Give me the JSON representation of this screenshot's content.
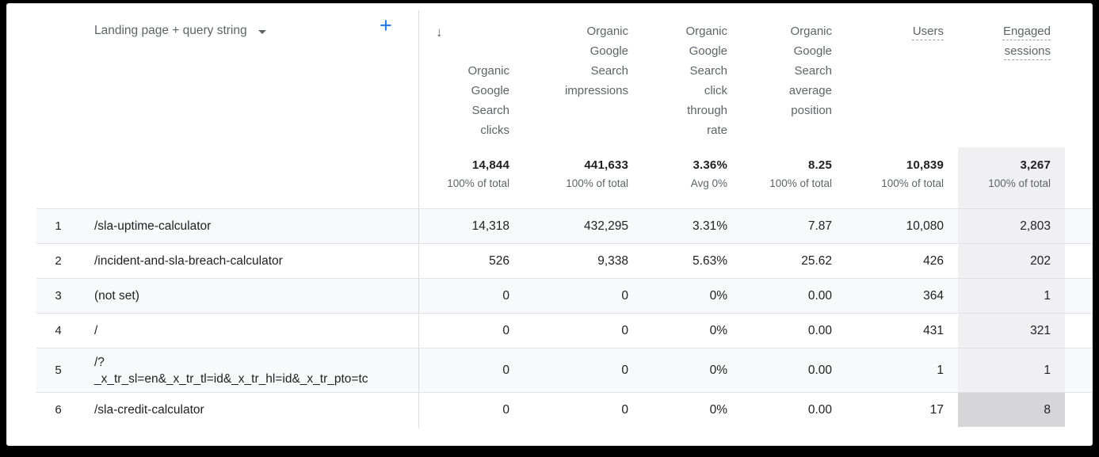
{
  "header": {
    "dimension_label": "Landing page + query string",
    "add_metric_label": "+",
    "sort_arrow": "↓",
    "columns": [
      {
        "label": "Organic\nGoogle\nSearch\nclicks"
      },
      {
        "label": "Organic\nGoogle\nSearch\nimpressions"
      },
      {
        "label": "Organic\nGoogle\nSearch\nclick\nthrough\nrate"
      },
      {
        "label": "Organic\nGoogle\nSearch\naverage\nposition"
      },
      {
        "label": "Users"
      },
      {
        "label": "Engaged\nsessions"
      }
    ]
  },
  "totals": [
    {
      "value": "14,844",
      "sub": "100% of total"
    },
    {
      "value": "441,633",
      "sub": "100% of total"
    },
    {
      "value": "3.36%",
      "sub": "Avg 0%"
    },
    {
      "value": "8.25",
      "sub": "100% of total"
    },
    {
      "value": "10,839",
      "sub": "100% of total"
    },
    {
      "value": "3,267",
      "sub": "100% of total"
    }
  ],
  "rows": [
    {
      "index": "1",
      "page": "/sla-uptime-calculator",
      "values": [
        "14,318",
        "432,295",
        "3.31%",
        "7.87",
        "10,080",
        "2,803"
      ]
    },
    {
      "index": "2",
      "page": "/incident-and-sla-breach-calculator",
      "values": [
        "526",
        "9,338",
        "5.63%",
        "25.62",
        "426",
        "202"
      ]
    },
    {
      "index": "3",
      "page": "(not set)",
      "values": [
        "0",
        "0",
        "0%",
        "0.00",
        "364",
        "1"
      ]
    },
    {
      "index": "4",
      "page": "/",
      "values": [
        "0",
        "0",
        "0%",
        "0.00",
        "431",
        "321"
      ]
    },
    {
      "index": "5",
      "page": "/?\n_x_tr_sl=en&_x_tr_tl=id&_x_tr_hl=id&_x_tr_pto=tc",
      "values": [
        "0",
        "0",
        "0%",
        "0.00",
        "1",
        "1"
      ]
    },
    {
      "index": "6",
      "page": "/sla-credit-calculator",
      "values": [
        "0",
        "0",
        "0%",
        "0.00",
        "17",
        "8"
      ]
    }
  ],
  "colors": {
    "accent_blue": "#1a73e8",
    "header_text": "#5f6368",
    "value_text": "#202124",
    "zebra_row": "#f8f9fa",
    "selected_column_bg": "#f0f0f2",
    "hovered_cell_bg": "#d6d6d9",
    "frame": "#000000"
  }
}
